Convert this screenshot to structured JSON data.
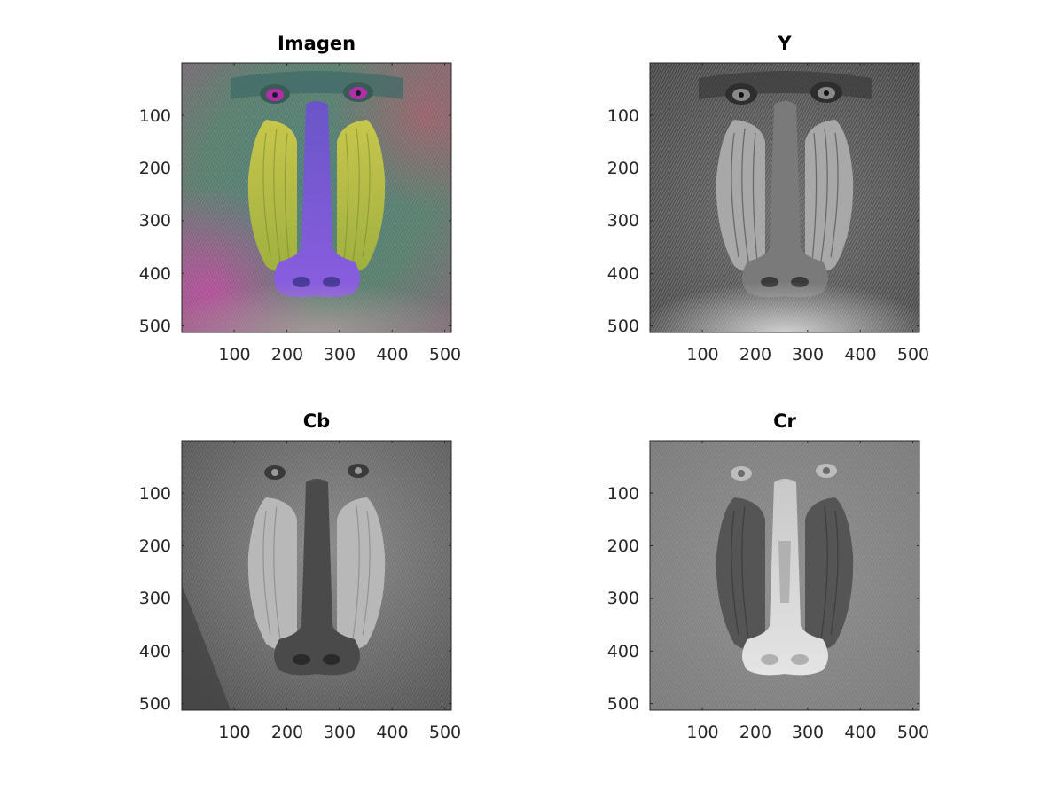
{
  "figure": {
    "panels": [
      {
        "id": "imagen",
        "title": "Imagen",
        "colormap": "rgb"
      },
      {
        "id": "y",
        "title": "Y",
        "colormap": "gray"
      },
      {
        "id": "cb",
        "title": "Cb",
        "colormap": "gray"
      },
      {
        "id": "cr",
        "title": "Cr",
        "colormap": "gray"
      }
    ],
    "x_ticks": [
      "100",
      "200",
      "300",
      "400",
      "500"
    ],
    "y_ticks": [
      "100",
      "200",
      "300",
      "400",
      "500"
    ],
    "axis_range": [
      0.5,
      512.5
    ],
    "colors": {
      "axis": "#262626",
      "tick_text": "#262626",
      "title": "#000000"
    }
  }
}
